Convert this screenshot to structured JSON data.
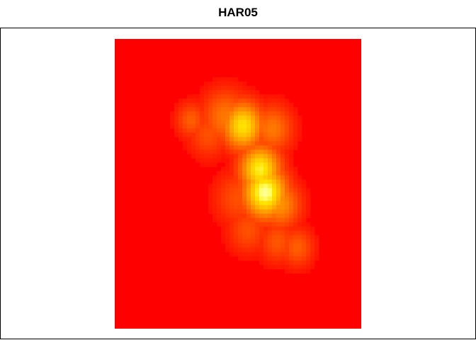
{
  "chart_data": {
    "type": "heatmap",
    "title": "HAR05",
    "xlabel": "",
    "ylabel": "",
    "colormap": "heat",
    "colors": {
      "low": "#ff0000",
      "mid_low": "#ff4000",
      "mid": "#ff8000",
      "mid_high": "#ffbf00",
      "high": "#ffff00",
      "frame": "#000000",
      "background": "#ffffff"
    },
    "value_range": [
      0,
      1
    ],
    "grid": false,
    "legend": "none",
    "hotspots": [
      {
        "x": 0.31,
        "y": 0.28,
        "intensity": 0.35,
        "spread": 0.045
      },
      {
        "x": 0.38,
        "y": 0.33,
        "intensity": 0.3,
        "spread": 0.06
      },
      {
        "x": 0.45,
        "y": 0.27,
        "intensity": 0.45,
        "spread": 0.07
      },
      {
        "x": 0.52,
        "y": 0.3,
        "intensity": 0.85,
        "spread": 0.06
      },
      {
        "x": 0.64,
        "y": 0.31,
        "intensity": 0.45,
        "spread": 0.06
      },
      {
        "x": 0.59,
        "y": 0.45,
        "intensity": 0.9,
        "spread": 0.06
      },
      {
        "x": 0.61,
        "y": 0.53,
        "intensity": 1.0,
        "spread": 0.065
      },
      {
        "x": 0.67,
        "y": 0.57,
        "intensity": 0.55,
        "spread": 0.06
      },
      {
        "x": 0.5,
        "y": 0.55,
        "intensity": 0.3,
        "spread": 0.07
      },
      {
        "x": 0.54,
        "y": 0.66,
        "intensity": 0.3,
        "spread": 0.06
      },
      {
        "x": 0.66,
        "y": 0.7,
        "intensity": 0.32,
        "spread": 0.055
      },
      {
        "x": 0.74,
        "y": 0.72,
        "intensity": 0.35,
        "spread": 0.05
      }
    ]
  }
}
